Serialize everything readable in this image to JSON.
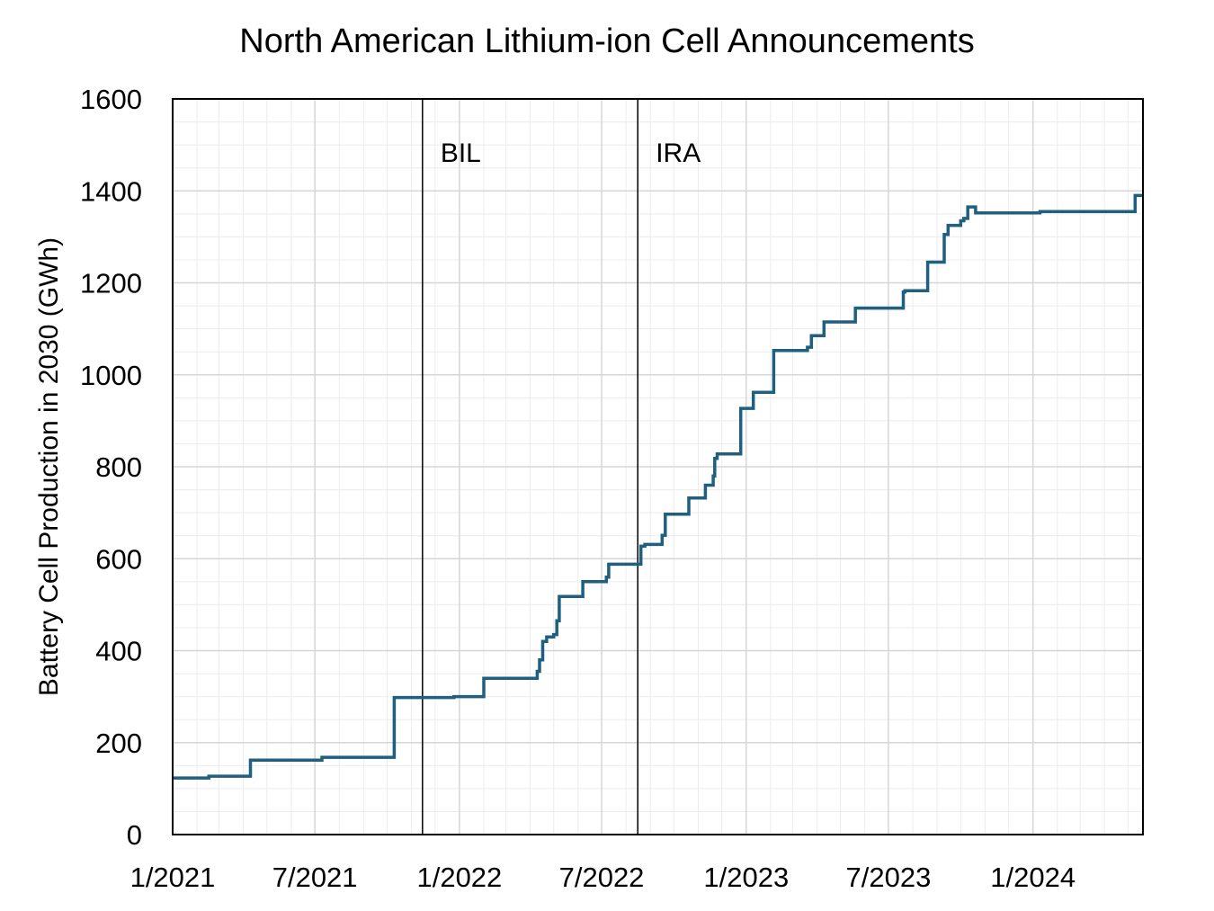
{
  "chart_data": {
    "type": "line",
    "title": "North American Lithium-ion Cell Announcements",
    "xlabel": "",
    "ylabel": "Battery Cell Production in 2030 (GWh)",
    "ylim": [
      0,
      1600
    ],
    "yticks": [
      "0",
      "200",
      "400",
      "600",
      "800",
      "1000",
      "1200",
      "1400",
      "1600"
    ],
    "xlim": [
      "2021-01-01",
      "2024-05-20"
    ],
    "xticks": [
      {
        "date": "2021-01-01",
        "label": "1/2021"
      },
      {
        "date": "2021-07-01",
        "label": "7/2021"
      },
      {
        "date": "2022-01-01",
        "label": "1/2022"
      },
      {
        "date": "2022-07-01",
        "label": "7/2022"
      },
      {
        "date": "2023-01-01",
        "label": "1/2023"
      },
      {
        "date": "2023-07-01",
        "label": "7/2023"
      },
      {
        "date": "2024-01-01",
        "label": "1/2024"
      }
    ],
    "grid": true,
    "line_color": "#1f5f7f",
    "annotations": [
      {
        "date": "2021-11-15",
        "label": "BIL"
      },
      {
        "date": "2022-08-16",
        "label": "IRA"
      }
    ],
    "series": [
      {
        "step": true,
        "x": [
          "2021-01-01",
          "2021-02-16",
          "2021-04-10",
          "2021-07-10",
          "2021-10-10",
          "2021-12-25",
          "2022-02-01",
          "2022-04-10",
          "2022-04-13",
          "2022-04-17",
          "2022-04-22",
          "2022-05-01",
          "2022-05-05",
          "2022-05-08",
          "2022-06-07",
          "2022-07-07",
          "2022-07-10",
          "2022-08-20",
          "2022-08-25",
          "2022-09-16",
          "2022-09-20",
          "2022-10-20",
          "2022-11-10",
          "2022-11-20",
          "2022-11-22",
          "2022-11-25",
          "2022-12-25",
          "2023-01-10",
          "2023-02-05",
          "2023-03-20",
          "2023-03-25",
          "2023-04-10",
          "2023-05-20",
          "2023-07-20",
          "2023-07-22",
          "2023-08-20",
          "2023-09-10",
          "2023-09-15",
          "2023-10-01",
          "2023-10-05",
          "2023-10-10",
          "2023-10-20",
          "2024-01-10",
          "2024-05-10"
        ],
        "y": [
          123,
          127,
          162,
          168,
          298,
          300,
          340,
          355,
          380,
          420,
          430,
          435,
          465,
          518,
          550,
          560,
          588,
          627,
          631,
          651,
          697,
          732,
          760,
          780,
          818,
          828,
          927,
          962,
          1053,
          1060,
          1085,
          1115,
          1145,
          1180,
          1183,
          1245,
          1305,
          1325,
          1335,
          1340,
          1365,
          1352,
          1355,
          1390
        ]
      }
    ]
  }
}
